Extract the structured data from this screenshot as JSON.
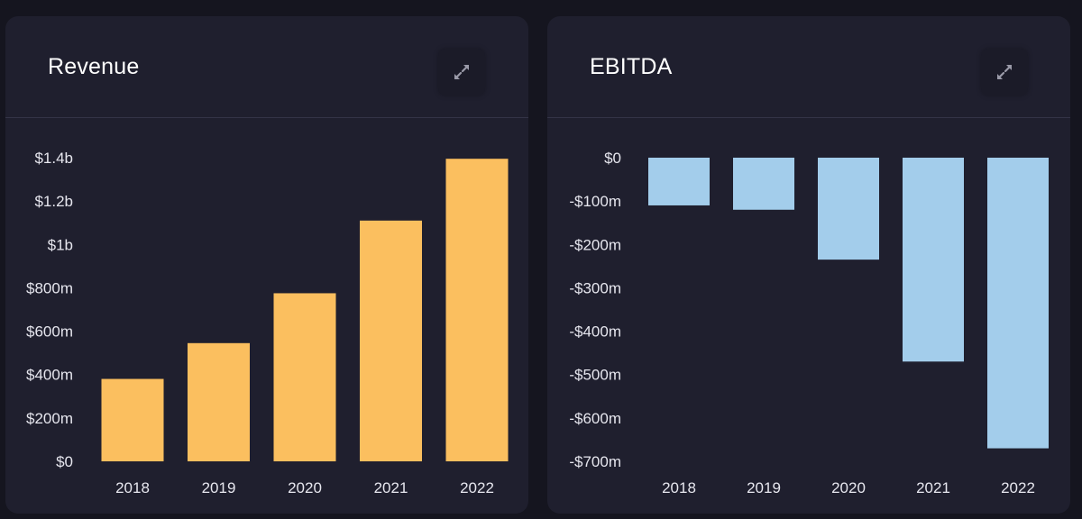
{
  "colors": {
    "revenue_bar": "#fbbf5f",
    "ebitda_bar": "#a3cdeb",
    "card_bg": "#1f1f2e",
    "page_bg": "#15151f"
  },
  "icons": {
    "expand": "expand-arrows-icon"
  },
  "chart_data": [
    {
      "type": "bar",
      "title": "Revenue",
      "categories": [
        "2018",
        "2019",
        "2020",
        "2021",
        "2022"
      ],
      "values": [
        380,
        545,
        775,
        1110,
        1395
      ],
      "unit": "millions USD",
      "ylim": [
        0,
        1400
      ],
      "yticks": [
        {
          "value": 0,
          "label": "$0"
        },
        {
          "value": 200,
          "label": "$200m"
        },
        {
          "value": 400,
          "label": "$400m"
        },
        {
          "value": 600,
          "label": "$600m"
        },
        {
          "value": 800,
          "label": "$800m"
        },
        {
          "value": 1000,
          "label": "$1b"
        },
        {
          "value": 1200,
          "label": "$1.2b"
        },
        {
          "value": 1400,
          "label": "$1.4b"
        }
      ],
      "grid": false,
      "legend": "none"
    },
    {
      "type": "bar",
      "title": "EBITDA",
      "categories": [
        "2018",
        "2019",
        "2020",
        "2021",
        "2022"
      ],
      "values": [
        -110,
        -120,
        -235,
        -470,
        -670
      ],
      "unit": "millions USD",
      "ylim": [
        -700,
        0
      ],
      "yticks": [
        {
          "value": 0,
          "label": "$0"
        },
        {
          "value": -100,
          "label": "-$100m"
        },
        {
          "value": -200,
          "label": "-$200m"
        },
        {
          "value": -300,
          "label": "-$300m"
        },
        {
          "value": -400,
          "label": "-$400m"
        },
        {
          "value": -500,
          "label": "-$500m"
        },
        {
          "value": -600,
          "label": "-$600m"
        },
        {
          "value": -700,
          "label": "-$700m"
        }
      ],
      "grid": false,
      "legend": "none"
    }
  ]
}
